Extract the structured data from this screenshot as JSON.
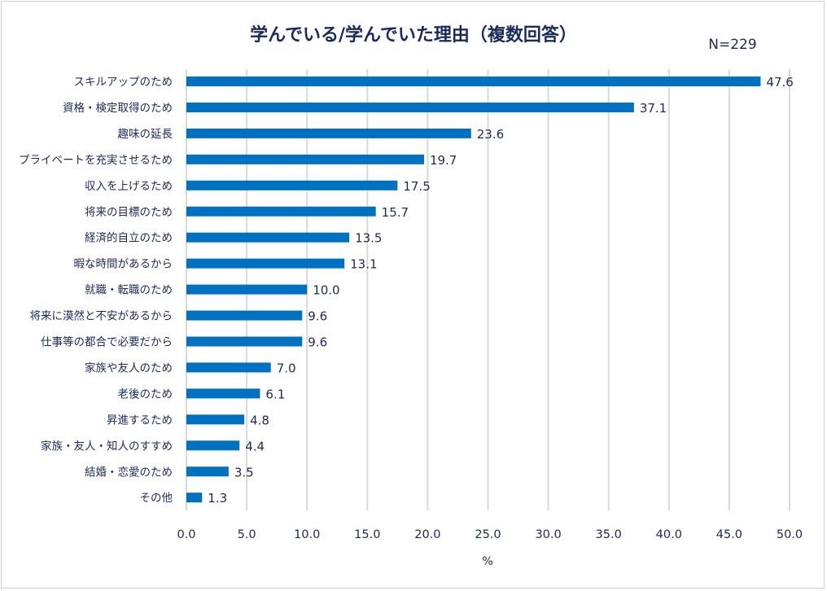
{
  "chart_data": {
    "type": "bar",
    "orientation": "horizontal",
    "title": "学んでいる/学んでいた理由（複数回答）",
    "annotation": "N=229",
    "xlabel": "%",
    "ylabel": "",
    "xlim": [
      0,
      50
    ],
    "xticks": [
      "0.0",
      "5.0",
      "10.0",
      "15.0",
      "20.0",
      "25.0",
      "30.0",
      "35.0",
      "40.0",
      "45.0",
      "50.0"
    ],
    "grid": true,
    "color": "#0070c0",
    "categories": [
      "スキルアップのため",
      "資格・検定取得のため",
      "趣味の延長",
      "プライベートを充実させるため",
      "収入を上げるため",
      "将来の目標のため",
      "経済的自立のため",
      "暇な時間があるから",
      "就職・転職のため",
      "将来に漠然と不安があるから",
      "仕事等の都合で必要だから",
      "家族や友人のため",
      "老後のため",
      "昇進するため",
      "家族・友人・知人のすすめ",
      "結婚・恋愛のため",
      "その他"
    ],
    "values": [
      47.6,
      37.1,
      23.6,
      19.7,
      17.5,
      15.7,
      13.5,
      13.1,
      10.0,
      9.6,
      9.6,
      7.0,
      6.1,
      4.8,
      4.4,
      3.5,
      1.3
    ],
    "labels": [
      "47.6",
      "37.1",
      "23.6",
      "19.7",
      "17.5",
      "15.7",
      "13.5",
      "13.1",
      "10.0",
      "9.6",
      "9.6",
      "7.0",
      "6.1",
      "4.8",
      "4.4",
      "3.5",
      "1.3"
    ]
  }
}
